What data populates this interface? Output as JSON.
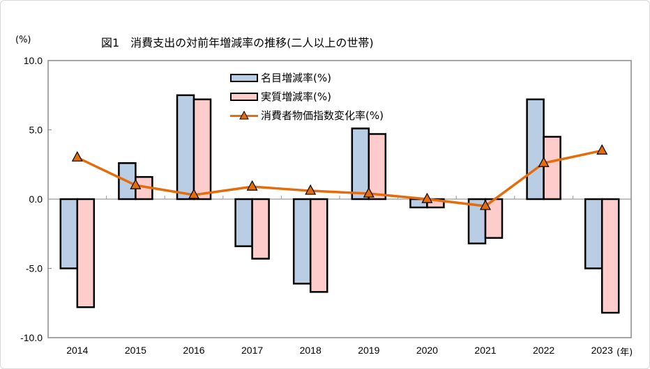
{
  "chart_data": {
    "type": "bar",
    "title": "図1　消費支出の対前年増減率の推移(二人以上の世帯)",
    "ylabel": "(%)",
    "xlabel": "(年)",
    "ylim": [
      -10,
      10
    ],
    "yticks": [
      10,
      5,
      0,
      -5,
      -10
    ],
    "ytick_labels": [
      "10.0",
      "5.0",
      "0.0",
      "-5.0",
      "-10.0"
    ],
    "categories": [
      "2014",
      "2015",
      "2016",
      "2017",
      "2018",
      "2019",
      "2020",
      "2021",
      "2022",
      "2023"
    ],
    "series": [
      {
        "name": "名目増減率(%)",
        "kind": "bar",
        "color": "#b9cde5",
        "values": [
          -5.0,
          2.6,
          7.5,
          -3.4,
          -6.1,
          5.1,
          -0.6,
          -3.2,
          7.2,
          -5.0
        ]
      },
      {
        "name": "実質増減率(%)",
        "kind": "bar",
        "color": "#ffcccc",
        "values": [
          -7.8,
          1.6,
          7.2,
          -4.3,
          -6.7,
          4.7,
          -0.6,
          -2.8,
          4.5,
          -8.2
        ]
      },
      {
        "name": "消費者物価指数変化率(%)",
        "kind": "line",
        "color": "#e46c0a",
        "marker": "triangle",
        "values": [
          3.0,
          1.0,
          0.3,
          0.9,
          0.6,
          0.4,
          0.0,
          -0.5,
          2.6,
          3.5
        ]
      }
    ],
    "grid": false,
    "legend_position": "top-center"
  }
}
